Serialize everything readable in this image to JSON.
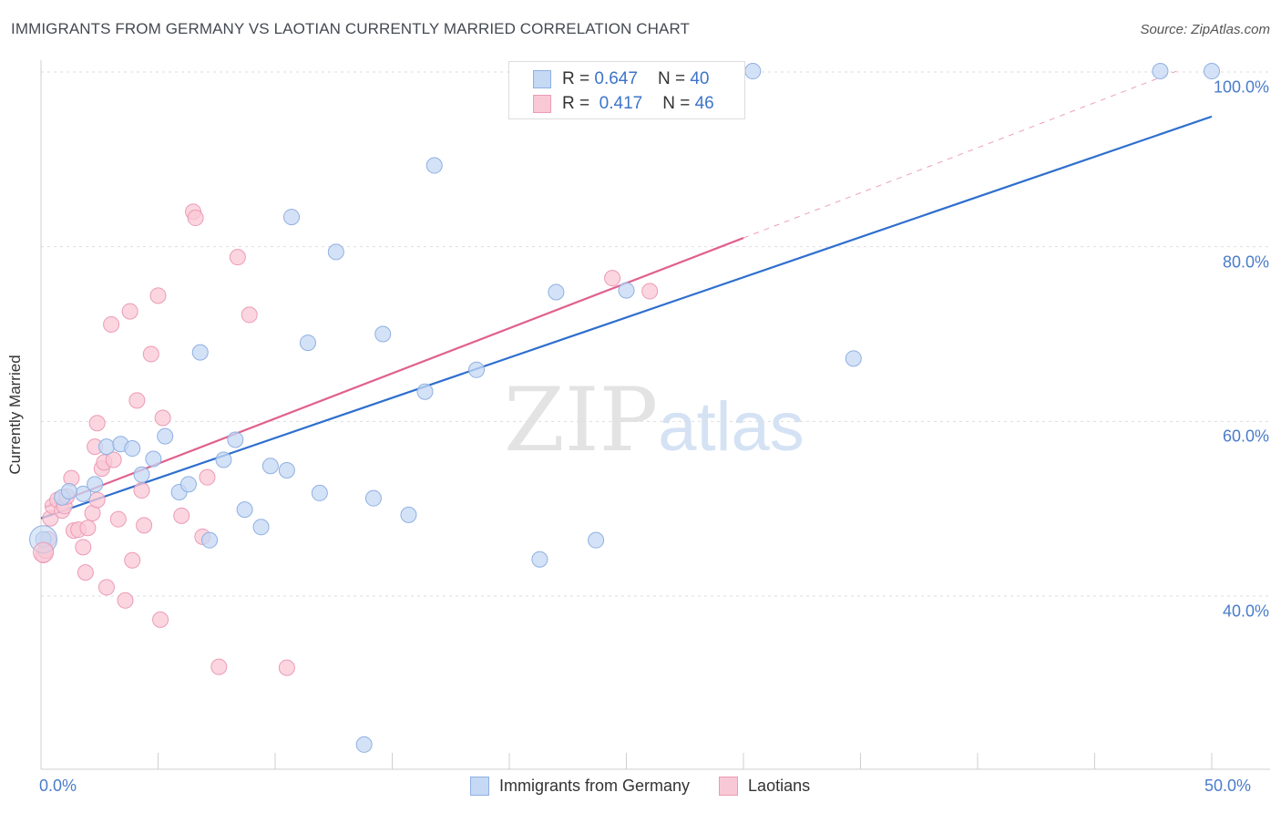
{
  "title": "IMMIGRANTS FROM GERMANY VS LAOTIAN CURRENTLY MARRIED CORRELATION CHART",
  "source": "Source: ZipAtlas.com",
  "watermark": {
    "zip": "ZIP",
    "atlas": "atlas"
  },
  "legend": {
    "r_label": "R =",
    "n_label": "N =",
    "series": [
      {
        "r": "0.647",
        "n": "40"
      },
      {
        "r": "0.417",
        "n": "46"
      }
    ]
  },
  "colors": {
    "blue_fill": "#c5d8f4",
    "blue_stroke": "#8fb0e2",
    "blue_line": "#2e6fce",
    "pink_fill": "#f9c8d6",
    "pink_stroke": "#ec9bb5",
    "pink_line": "#e0608e",
    "tick_text": "#4a7ccb",
    "grid": "#dddddd"
  },
  "chart_data": {
    "type": "scatter",
    "title": "IMMIGRANTS FROM GERMANY VS LAOTIAN CURRENTLY MARRIED CORRELATION CHART",
    "xlabel": "",
    "ylabel": "Currently Married",
    "xlim": [
      0,
      50
    ],
    "ylim": [
      20,
      102
    ],
    "x_tick_labels": [
      "0.0%",
      "50.0%"
    ],
    "y_ticks": [
      40,
      60,
      80,
      100
    ],
    "y_tick_labels": [
      "40.0%",
      "60.0%",
      "80.0%",
      "100.0%"
    ],
    "grid": true,
    "legend_position": "top-center",
    "series": [
      {
        "name": "Immigrants from Germany",
        "r": 0.647,
        "n": 40,
        "trend": {
          "x": [
            0,
            50
          ],
          "y": [
            48.9,
            94.9
          ]
        },
        "points": [
          [
            0.1,
            46.5
          ],
          [
            0.9,
            51.3
          ],
          [
            1.8,
            51.7
          ],
          [
            2.3,
            52.8
          ],
          [
            2.8,
            57.1
          ],
          [
            3.4,
            57.4
          ],
          [
            3.9,
            56.9
          ],
          [
            4.3,
            53.9
          ],
          [
            4.8,
            55.7
          ],
          [
            5.3,
            58.3
          ],
          [
            5.9,
            51.9
          ],
          [
            6.3,
            52.8
          ],
          [
            6.8,
            67.9
          ],
          [
            7.2,
            46.4
          ],
          [
            7.8,
            55.6
          ],
          [
            8.3,
            57.9
          ],
          [
            8.7,
            49.9
          ],
          [
            9.4,
            47.9
          ],
          [
            9.8,
            54.9
          ],
          [
            10.5,
            54.4
          ],
          [
            10.7,
            83.4
          ],
          [
            11.4,
            69.0
          ],
          [
            11.9,
            51.8
          ],
          [
            12.6,
            79.4
          ],
          [
            13.8,
            23.0
          ],
          [
            14.2,
            51.2
          ],
          [
            14.6,
            70.0
          ],
          [
            15.7,
            49.3
          ],
          [
            16.4,
            63.4
          ],
          [
            16.8,
            89.3
          ],
          [
            18.6,
            65.9
          ],
          [
            21.3,
            44.2
          ],
          [
            22.0,
            74.8
          ],
          [
            23.7,
            46.4
          ],
          [
            25.0,
            75.0
          ],
          [
            30.4,
            100.1
          ],
          [
            34.7,
            67.2
          ],
          [
            47.8,
            100.1
          ],
          [
            50.0,
            100.1
          ],
          [
            1.2,
            52.0
          ]
        ]
      },
      {
        "name": "Laotians",
        "r": 0.417,
        "n": 46,
        "trend": {
          "x": [
            0.2,
            30.0
          ],
          "y": [
            50.2,
            81.0
          ]
        },
        "trend_dashed": {
          "x": [
            30.0,
            48.5
          ],
          "y": [
            81.0,
            100.1
          ]
        },
        "points": [
          [
            0.1,
            44.7
          ],
          [
            0.3,
            46.5
          ],
          [
            0.4,
            48.9
          ],
          [
            0.5,
            50.3
          ],
          [
            0.7,
            51.0
          ],
          [
            0.9,
            49.8
          ],
          [
            1.0,
            50.3
          ],
          [
            1.1,
            51.4
          ],
          [
            1.3,
            53.5
          ],
          [
            1.4,
            47.5
          ],
          [
            1.6,
            47.6
          ],
          [
            1.8,
            45.6
          ],
          [
            1.9,
            42.7
          ],
          [
            2.0,
            47.8
          ],
          [
            2.2,
            49.5
          ],
          [
            2.4,
            51.0
          ],
          [
            2.3,
            57.1
          ],
          [
            2.4,
            59.8
          ],
          [
            2.6,
            54.6
          ],
          [
            2.7,
            55.3
          ],
          [
            2.8,
            41.0
          ],
          [
            3.0,
            71.1
          ],
          [
            3.1,
            55.6
          ],
          [
            3.3,
            48.8
          ],
          [
            3.6,
            39.5
          ],
          [
            3.8,
            72.6
          ],
          [
            3.9,
            44.1
          ],
          [
            4.1,
            62.4
          ],
          [
            4.3,
            52.1
          ],
          [
            4.4,
            48.1
          ],
          [
            4.7,
            67.7
          ],
          [
            5.0,
            74.4
          ],
          [
            5.1,
            37.3
          ],
          [
            5.2,
            60.4
          ],
          [
            6.0,
            49.2
          ],
          [
            6.5,
            84.0
          ],
          [
            6.6,
            83.3
          ],
          [
            6.9,
            46.8
          ],
          [
            7.1,
            53.6
          ],
          [
            7.6,
            31.9
          ],
          [
            8.4,
            78.8
          ],
          [
            8.9,
            72.2
          ],
          [
            10.5,
            31.8
          ],
          [
            24.4,
            76.4
          ],
          [
            26.0,
            74.9
          ],
          [
            0.2,
            45.2
          ]
        ]
      }
    ]
  }
}
